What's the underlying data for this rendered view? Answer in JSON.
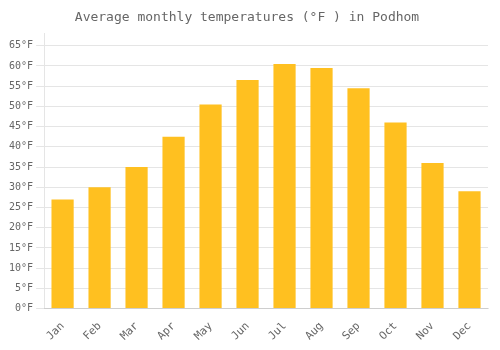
{
  "chart_data": {
    "type": "bar",
    "title": "Average monthly temperatures (°F ) in Podhom",
    "categories": [
      "Jan",
      "Feb",
      "Mar",
      "Apr",
      "May",
      "Jun",
      "Jul",
      "Aug",
      "Sep",
      "Oct",
      "Nov",
      "Dec"
    ],
    "values": [
      27,
      30,
      35,
      42.5,
      50.5,
      56.5,
      60.5,
      59.5,
      54.5,
      46,
      36,
      29
    ],
    "color": "#FFC020",
    "ylim": [
      0,
      68
    ],
    "yticks": [
      {
        "value": 0,
        "label": "0°F"
      },
      {
        "value": 5,
        "label": "5°F"
      },
      {
        "value": 10,
        "label": "10°F"
      },
      {
        "value": 15,
        "label": "15°F"
      },
      {
        "value": 20,
        "label": "20°F"
      },
      {
        "value": 25,
        "label": "25°F"
      },
      {
        "value": 30,
        "label": "30°F"
      },
      {
        "value": 35,
        "label": "35°F"
      },
      {
        "value": 40,
        "label": "40°F"
      },
      {
        "value": 45,
        "label": "45°F"
      },
      {
        "value": 50,
        "label": "50°F"
      },
      {
        "value": 55,
        "label": "55°F"
      },
      {
        "value": 60,
        "label": "60°F"
      },
      {
        "value": 65,
        "label": "65°F"
      }
    ],
    "grid": true
  }
}
